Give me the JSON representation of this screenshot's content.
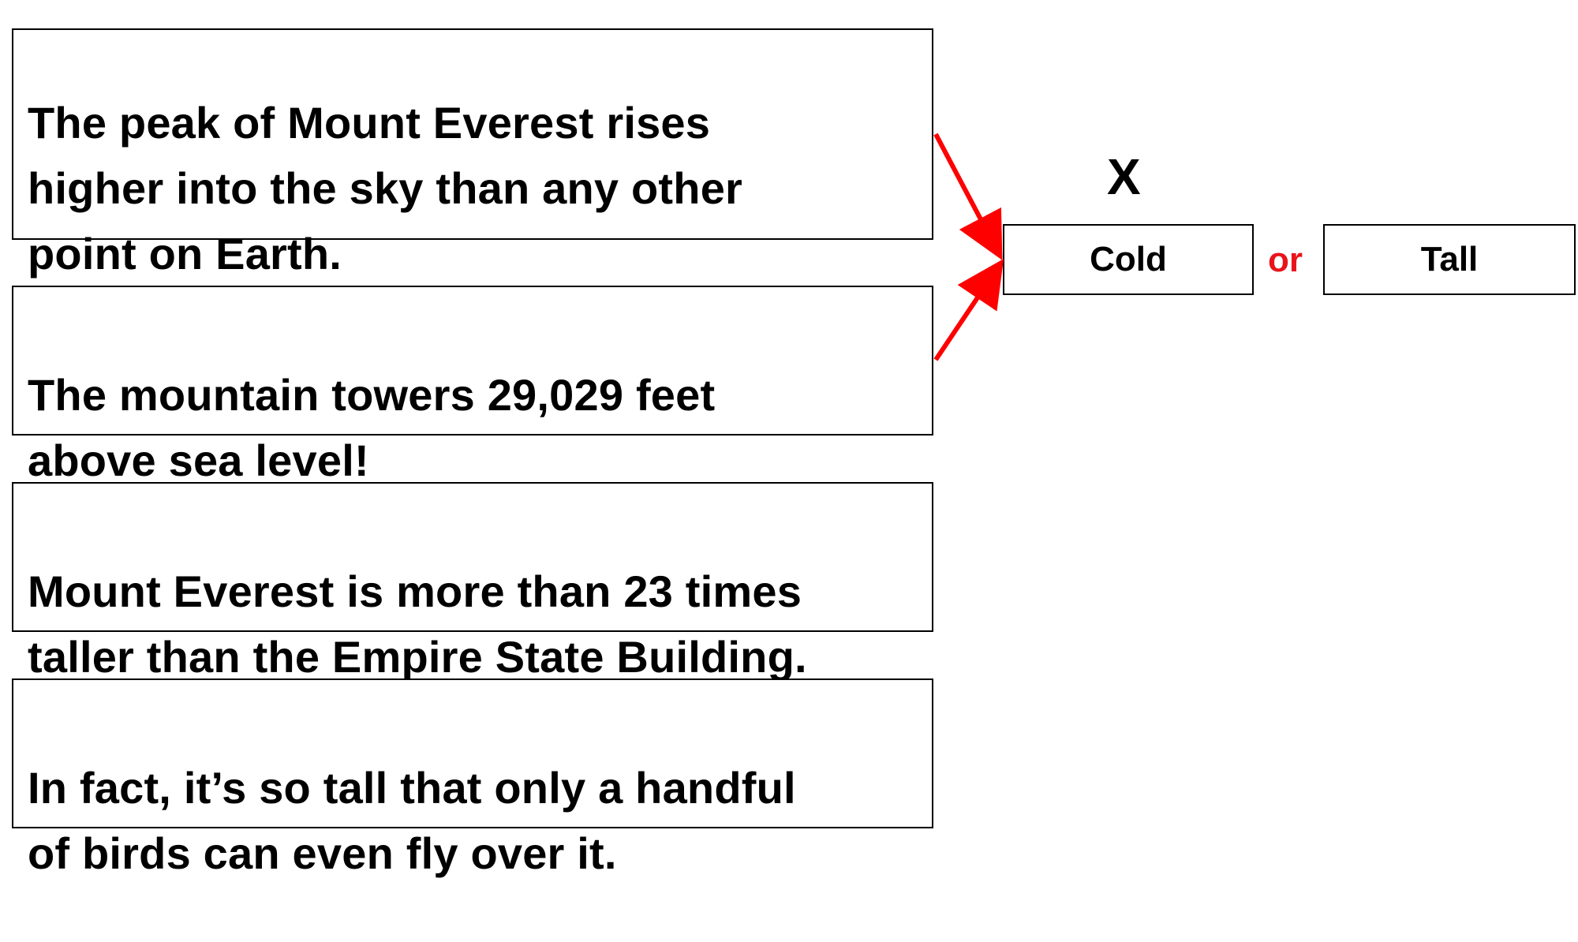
{
  "facts": [
    {
      "text": "The peak of Mount Everest rises\nhigher into the sky than any other\npoint on Earth."
    },
    {
      "text": "The mountain towers 29,029 feet\nabove sea level!"
    },
    {
      "text": "Mount Everest is more than 23 times\ntaller than the Empire State Building."
    },
    {
      "text": "In fact, it’s so tall that only a handful\nof birds can even fly over it."
    }
  ],
  "choice": {
    "mark": "X",
    "option_a": "Cold",
    "connector": "or",
    "option_b": "Tall"
  },
  "colors": {
    "arrow": "#ff0000",
    "connector": "#e8141b",
    "border": "#000000",
    "text": "#000000"
  }
}
